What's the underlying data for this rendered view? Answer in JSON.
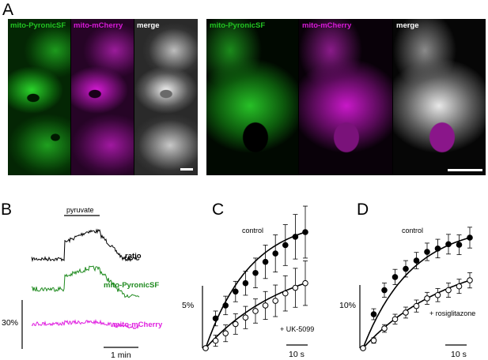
{
  "panels": {
    "A": {
      "letter": "A",
      "left_channels": [
        "mito-PyronicSF",
        "mito-mCherry",
        "merge"
      ],
      "right_channels": [
        "mito-PyronicSF",
        "mito-mCherry",
        "merge"
      ]
    },
    "B": {
      "letter": "B",
      "stim_label": "pyruvate",
      "trace_labels": {
        "ratio": "ratio",
        "green": "mito-PyronicSF",
        "magenta": "mito-mCherry"
      },
      "scale_y": "30%",
      "scale_x": "1 min"
    },
    "C": {
      "letter": "C",
      "label_control": "control",
      "label_treatment": "+ UK-5099",
      "scale_y": "5%",
      "scale_x": "10 s"
    },
    "D": {
      "letter": "D",
      "label_control": "control",
      "label_treatment": "+ rosiglitazone",
      "scale_y": "10%",
      "scale_x": "10 s"
    }
  },
  "colors": {
    "green": "#22c422",
    "magenta": "#d81ad8",
    "trace_green": "#1f8a1f",
    "trace_magenta": "#e020e0"
  },
  "chart_data": [
    {
      "type": "scatter",
      "panel": "C",
      "x": [
        0,
        1,
        2,
        3,
        4,
        5,
        6,
        7,
        8,
        9,
        10
      ],
      "series": [
        {
          "name": "control",
          "marker": "filled",
          "values": [
            0,
            3.2,
            4.6,
            6.1,
            7.0,
            8.1,
            9.3,
            10.2,
            11.1,
            12.0,
            12.5
          ],
          "errors": [
            0,
            0.8,
            1.0,
            1.1,
            1.3,
            1.6,
            1.8,
            2.0,
            2.2,
            2.4,
            2.8
          ]
        },
        {
          "name": "+ UK-5099",
          "marker": "open",
          "values": [
            0,
            0.8,
            1.6,
            2.6,
            3.3,
            4.0,
            4.6,
            5.1,
            5.9,
            6.5,
            7.0
          ],
          "errors": [
            0,
            0.6,
            0.9,
            1.1,
            1.2,
            1.3,
            1.5,
            1.7,
            1.9,
            2.1,
            2.4
          ]
        }
      ],
      "fits": true
    },
    {
      "type": "scatter",
      "panel": "D",
      "x": [
        0,
        1,
        2,
        3,
        4,
        5,
        6,
        7,
        8,
        9,
        10
      ],
      "series": [
        {
          "name": "control",
          "marker": "filled",
          "values": [
            0,
            6.2,
            10.6,
            13.0,
            14.5,
            16.0,
            17.6,
            18.2,
            19.0,
            18.9,
            20.2
          ],
          "errors": [
            0,
            1.0,
            1.3,
            1.4,
            1.5,
            1.5,
            1.6,
            1.7,
            1.8,
            1.8,
            1.9
          ]
        },
        {
          "name": "+ rosiglitazone",
          "marker": "open",
          "values": [
            0,
            1.4,
            3.6,
            5.3,
            6.5,
            7.7,
            9.1,
            9.7,
            10.6,
            11.3,
            12.4
          ],
          "errors": [
            0,
            0.5,
            0.7,
            0.9,
            1.0,
            1.1,
            1.1,
            1.2,
            1.3,
            1.3,
            1.4
          ]
        }
      ],
      "fits": true
    }
  ]
}
